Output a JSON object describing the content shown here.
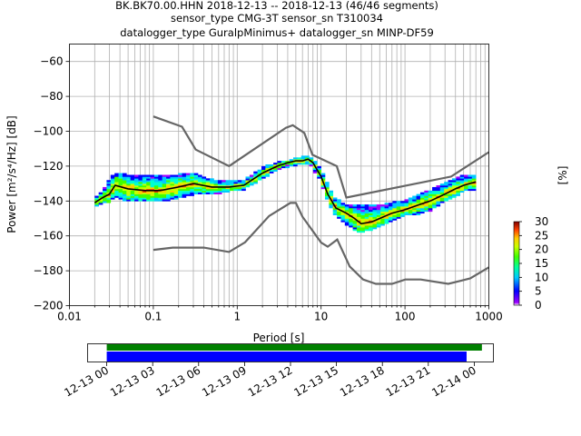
{
  "title": {
    "line1": "BK.BK70.00.HHN   2018-12-13 -- 2018-12-13  (46/46 segments)",
    "line2": "sensor_type CMG-3T sensor_sn T310034",
    "line3": "datalogger_type GuralpMinimus+ datalogger_sn MINP-DF59"
  },
  "chart_data": [
    {
      "type": "heatmap",
      "title": "BK.BK70.00.HHN   2018-12-13 -- 2018-12-13  (46/46 segments)",
      "xlabel": "Period [s]",
      "ylabel": "Power [m²/s⁴/Hz] [dB]",
      "xscale": "log",
      "xlim": [
        0.01,
        1000
      ],
      "ylim": [
        -200,
        -50
      ],
      "x_ticks": [
        "0.01",
        "0.1",
        "1",
        "10",
        "100",
        "1000"
      ],
      "y_ticks": [
        "−200",
        "−180",
        "−160",
        "−140",
        "−120",
        "−100",
        "−80",
        "−60"
      ],
      "grid": true,
      "colorbar": {
        "label": "[%]",
        "ticks": [
          "0",
          "5",
          "10",
          "15",
          "20",
          "25",
          "30"
        ],
        "range": [
          0,
          30
        ]
      },
      "noise_models": {
        "color": "#666666",
        "high": {
          "x": [
            0.1,
            0.22,
            0.32,
            0.8,
            3.8,
            4.6,
            6.3,
            7.9,
            15.4,
            20,
            354.8,
            1000
          ],
          "y": [
            -91.5,
            -97.4,
            -110.5,
            -120,
            -98,
            -96.5,
            -101,
            -113.5,
            -120,
            -138,
            -126,
            -112
          ]
        },
        "low": {
          "x": [
            0.1,
            0.17,
            0.4,
            0.8,
            1.24,
            2.4,
            4.3,
            5,
            6,
            10,
            12,
            15.6,
            21.9,
            31.6,
            45,
            70,
            101,
            154,
            328,
            600,
            1000
          ],
          "y": [
            -168,
            -166.7,
            -166.7,
            -169.2,
            -163.7,
            -148.6,
            -141.1,
            -141.1,
            -149,
            -163.8,
            -166.2,
            -162.1,
            -177.5,
            -185,
            -187.5,
            -187.5,
            -185,
            -185,
            -187.5,
            -184.4,
            -178
          ]
        }
      },
      "mode": {
        "color": "#000000",
        "x": [
          0.02,
          0.025,
          0.03,
          0.035,
          0.05,
          0.08,
          0.12,
          0.2,
          0.3,
          0.5,
          0.8,
          1.2,
          2,
          3,
          4,
          5,
          6,
          7,
          8,
          10,
          12,
          15,
          20,
          25,
          30,
          40,
          50,
          70,
          100,
          150,
          200,
          300,
          400,
          500,
          700
        ],
        "y": [
          -141,
          -138,
          -136,
          -131,
          -133,
          -134,
          -134,
          -132,
          -130,
          -132,
          -132,
          -131,
          -124,
          -120,
          -118,
          -117,
          -117,
          -116,
          -118,
          -126,
          -136,
          -144,
          -147,
          -150,
          -153,
          -152,
          -150,
          -147,
          -145,
          -142,
          -140,
          -136,
          -133,
          -131,
          -129
        ]
      },
      "psd_spread": {
        "x": [
          0.02,
          0.025,
          0.03,
          0.035,
          0.05,
          0.08,
          0.12,
          0.2,
          0.3,
          0.5,
          0.8,
          1.2,
          2,
          3,
          4,
          5,
          6,
          7,
          8,
          10,
          12,
          15,
          20,
          25,
          30,
          40,
          50,
          70,
          100,
          150,
          200,
          300,
          400,
          500,
          700
        ],
        "upper": [
          -138,
          -134,
          -128,
          -124,
          -125,
          -125,
          -126,
          -125,
          -124,
          -128,
          -129,
          -128,
          -121,
          -118,
          -117,
          -115,
          -115,
          -114,
          -116,
          -122,
          -131,
          -139,
          -142,
          -142,
          -143,
          -142,
          -143,
          -141,
          -140,
          -136,
          -134,
          -130,
          -127,
          -125,
          -125
        ],
        "lower": [
          -143,
          -141,
          -141,
          -137,
          -140,
          -140,
          -140,
          -138,
          -136,
          -136,
          -134,
          -133,
          -127,
          -122,
          -120,
          -119,
          -119,
          -118,
          -121,
          -129,
          -140,
          -148,
          -153,
          -156,
          -158,
          -156,
          -154,
          -151,
          -148,
          -147,
          -145,
          -140,
          -137,
          -134,
          -133
        ]
      }
    },
    {
      "type": "bar",
      "title": "",
      "xlabel": "",
      "ylabel": "",
      "x_ticks": [
        "12-13 00",
        "12-13 03",
        "12-13 06",
        "12-13 09",
        "12-13 12",
        "12-13 15",
        "12-13 18",
        "12-13 21",
        "12-14 00"
      ],
      "x_range_hours": [
        -1.25,
        25.25
      ],
      "series": [
        {
          "color": "#008000",
          "start_hour": 0,
          "end_hour": 24.5
        },
        {
          "color": "#0000ff",
          "start_hour": 0,
          "end_hour": 23.5
        }
      ]
    }
  ]
}
